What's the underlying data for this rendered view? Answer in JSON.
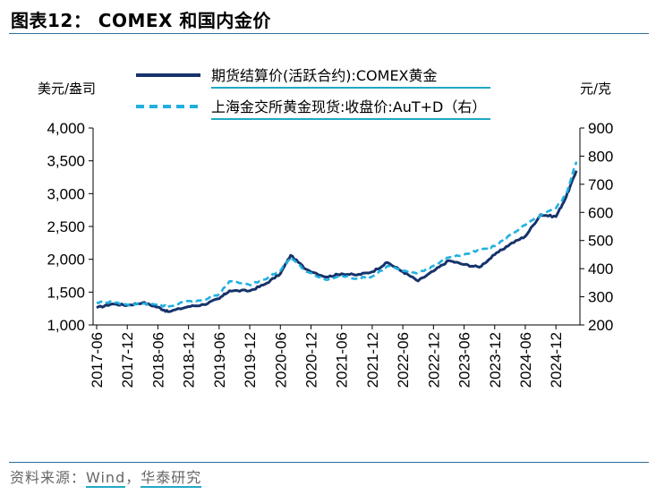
{
  "header": {
    "title": "图表12： COMEX 和国内金价"
  },
  "footer": {
    "source_prefix": "资料来源：",
    "source_wind": "Wind",
    "source_sep": "，",
    "source_org": "华泰研究"
  },
  "colors": {
    "series_comex": "#17336b",
    "series_aut": "#20b0e0",
    "rule": "#2e6e9c"
  },
  "chart_data": {
    "type": "line",
    "title": "COMEX 和国内金价",
    "ylabel_left": "美元/盎司",
    "ylabel_right": "元/克",
    "left_axis": {
      "min": 1000,
      "max": 4000,
      "ticks": [
        "1,000",
        "1,500",
        "2,000",
        "2,500",
        "3,000",
        "3,500",
        "4,000"
      ]
    },
    "right_axis": {
      "min": 200,
      "max": 900,
      "ticks": [
        "200",
        "300",
        "400",
        "500",
        "600",
        "700",
        "800",
        "900"
      ]
    },
    "x_ticks": [
      "2017-06",
      "2017-12",
      "2018-06",
      "2018-12",
      "2019-06",
      "2019-12",
      "2020-06",
      "2020-12",
      "2021-06",
      "2021-12",
      "2022-06",
      "2022-12",
      "2023-06",
      "2023-12",
      "2024-06",
      "2024-12"
    ],
    "x_range": [
      "2017-06",
      "2025-04"
    ],
    "series": [
      {
        "name": "期货结算价(活跃合约):COMEX黄金",
        "axis": "left",
        "style": "solid",
        "x": [
          "2017-06",
          "2017-09",
          "2017-12",
          "2018-03",
          "2018-06",
          "2018-08",
          "2018-12",
          "2019-03",
          "2019-06",
          "2019-08",
          "2019-12",
          "2020-03",
          "2020-06",
          "2020-08",
          "2020-11",
          "2021-03",
          "2021-06",
          "2021-09",
          "2021-12",
          "2022-03",
          "2022-06",
          "2022-09",
          "2022-12",
          "2023-03",
          "2023-06",
          "2023-09",
          "2023-12",
          "2024-03",
          "2024-06",
          "2024-09",
          "2024-12",
          "2025-02",
          "2025-04"
        ],
        "values": [
          1260,
          1320,
          1300,
          1340,
          1270,
          1200,
          1280,
          1310,
          1400,
          1520,
          1520,
          1620,
          1780,
          2060,
          1850,
          1730,
          1780,
          1760,
          1810,
          1950,
          1810,
          1670,
          1820,
          1980,
          1920,
          1880,
          2070,
          2230,
          2350,
          2680,
          2650,
          2950,
          3350
        ]
      },
      {
        "name": "上海金交所黄金现货:收盘价:AuT+D（右）",
        "axis": "right",
        "style": "dashed",
        "x": [
          "2017-06",
          "2017-09",
          "2017-12",
          "2018-03",
          "2018-06",
          "2018-08",
          "2018-12",
          "2019-03",
          "2019-06",
          "2019-08",
          "2019-12",
          "2020-03",
          "2020-06",
          "2020-08",
          "2020-11",
          "2021-03",
          "2021-06",
          "2021-09",
          "2021-12",
          "2022-03",
          "2022-06",
          "2022-09",
          "2022-12",
          "2023-03",
          "2023-06",
          "2023-09",
          "2023-12",
          "2024-03",
          "2024-06",
          "2024-09",
          "2024-12",
          "2025-02",
          "2025-04"
        ],
        "values": [
          280,
          282,
          272,
          276,
          272,
          265,
          285,
          288,
          310,
          355,
          342,
          362,
          393,
          440,
          390,
          360,
          375,
          365,
          372,
          410,
          392,
          385,
          410,
          440,
          450,
          465,
          480,
          520,
          555,
          590,
          615,
          665,
          780
        ]
      }
    ]
  },
  "legend": [
    {
      "label": "期货结算价(活跃合约):COMEX黄金",
      "style": "solid"
    },
    {
      "label": "上海金交所黄金现货:收盘价:AuT+D（右）",
      "style": "dashed"
    }
  ]
}
